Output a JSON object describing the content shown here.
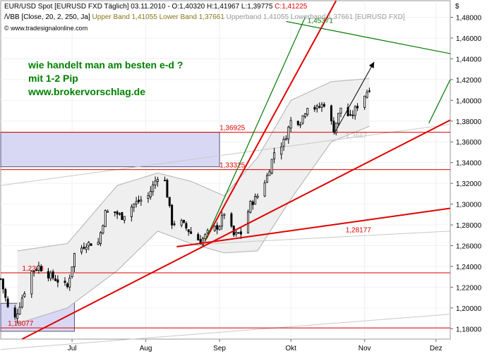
{
  "header": {
    "line1_prefix": "EUR/USD Spot [EURUSD FXD  Täglich] 03.11.2010 - O:1,40320 H:1,41967 L:1,39775 ",
    "line1_close": "C:1,41225",
    "line2_bb": "/\\/BB [Close, 20, 2, 250, Ja] ",
    "line2_upper": "Upper Band 1,41055 Lower Band 1,37661",
    "line2_gray": " Upperband 1,41055 Lowerband 1,37661  [EURUSD FXD]",
    "copyright": "© www.tradesignalonline.com",
    "currency_symbol": "$"
  },
  "annotation": {
    "line1": "wie handelt man am besten e-d ?",
    "line2": "mit 1-2 Pip",
    "line3": "www.brokervorschlag.de"
  },
  "colors": {
    "accent_red": "#e00000",
    "trend_green": "#007700",
    "candle_up": "#ffffff",
    "candle_down": "#000000",
    "zone_fill": "#d8d8f4",
    "zone_stroke": "#555577",
    "annotation_text": "#008000"
  },
  "chart_data": {
    "type": "candlestick",
    "x_start": "2010-06-01",
    "y_range": [
      1.17,
      1.496
    ],
    "x_range": [
      "2010-06-01",
      "2010-12-07"
    ],
    "y_tick_labels": [
      "1,18000",
      "1,20000",
      "1,22000",
      "1,24000",
      "1,26000",
      "1,28000",
      "1,30000",
      "1,32000",
      "1,34000",
      "1,36000",
      "1,38000",
      "1,40000",
      "1,42000",
      "1,44000",
      "1,46000",
      "1,48000"
    ],
    "y_ticks": [
      1.18,
      1.2,
      1.22,
      1.24,
      1.26,
      1.28,
      1.3,
      1.32,
      1.34,
      1.36,
      1.38,
      1.4,
      1.42,
      1.44,
      1.46,
      1.48
    ],
    "x_tick_labels": [
      {
        "label": "Jul",
        "date": "2010-07-01"
      },
      {
        "label": "Aug",
        "date": "2010-08-01"
      },
      {
        "label": "Sep",
        "date": "2010-09-01"
      },
      {
        "label": "Okt",
        "date": "2010-10-01"
      },
      {
        "label": "Nov",
        "date": "2010-11-01"
      },
      {
        "label": "Dez",
        "date": "2010-12-01"
      }
    ],
    "price_path": [
      [
        "2010-06-01",
        1.228
      ],
      [
        "2010-06-04",
        1.2
      ],
      [
        "2010-06-07",
        1.19
      ],
      [
        "2010-06-10",
        1.21
      ],
      [
        "2010-06-14",
        1.235
      ],
      [
        "2010-06-17",
        1.24
      ],
      [
        "2010-06-21",
        1.232
      ],
      [
        "2010-06-24",
        1.228
      ],
      [
        "2010-06-29",
        1.22
      ],
      [
        "2010-07-02",
        1.252
      ],
      [
        "2010-07-07",
        1.262
      ],
      [
        "2010-07-12",
        1.263
      ],
      [
        "2010-07-15",
        1.292
      ],
      [
        "2010-07-19",
        1.292
      ],
      [
        "2010-07-22",
        1.288
      ],
      [
        "2010-07-27",
        1.3
      ],
      [
        "2010-08-02",
        1.308
      ],
      [
        "2010-08-06",
        1.327
      ],
      [
        "2010-08-09",
        1.322
      ],
      [
        "2010-08-12",
        1.282
      ],
      [
        "2010-08-16",
        1.282
      ],
      [
        "2010-08-20",
        1.272
      ],
      [
        "2010-08-24",
        1.264
      ],
      [
        "2010-08-27",
        1.272
      ],
      [
        "2010-09-01",
        1.28
      ],
      [
        "2010-09-03",
        1.292
      ],
      [
        "2010-09-07",
        1.27
      ],
      [
        "2010-09-10",
        1.272
      ],
      [
        "2010-09-14",
        1.3
      ],
      [
        "2010-09-17",
        1.308
      ],
      [
        "2010-09-21",
        1.327
      ],
      [
        "2010-09-24",
        1.35
      ],
      [
        "2010-09-28",
        1.36
      ],
      [
        "2010-10-01",
        1.38
      ],
      [
        "2010-10-05",
        1.38
      ],
      [
        "2010-10-08",
        1.395
      ],
      [
        "2010-10-12",
        1.392
      ],
      [
        "2010-10-15",
        1.397
      ],
      [
        "2010-10-19",
        1.372
      ],
      [
        "2010-10-22",
        1.393
      ],
      [
        "2010-10-26",
        1.383
      ],
      [
        "2010-10-29",
        1.395
      ],
      [
        "2010-11-03",
        1.412
      ]
    ],
    "upper_band": [
      [
        "2010-06-08",
        1.255
      ],
      [
        "2010-06-29",
        1.262
      ],
      [
        "2010-07-20",
        1.318
      ],
      [
        "2010-08-06",
        1.33
      ],
      [
        "2010-08-20",
        1.322
      ],
      [
        "2010-09-03",
        1.308
      ],
      [
        "2010-09-17",
        1.345
      ],
      [
        "2010-10-01",
        1.4
      ],
      [
        "2010-10-18",
        1.418
      ],
      [
        "2010-11-03",
        1.421
      ]
    ],
    "lower_band": [
      [
        "2010-06-08",
        1.185
      ],
      [
        "2010-06-29",
        1.2
      ],
      [
        "2010-07-20",
        1.236
      ],
      [
        "2010-08-06",
        1.274
      ],
      [
        "2010-08-20",
        1.262
      ],
      [
        "2010-09-03",
        1.253
      ],
      [
        "2010-09-17",
        1.255
      ],
      [
        "2010-10-01",
        1.305
      ],
      [
        "2010-10-18",
        1.36
      ],
      [
        "2010-11-03",
        1.375
      ]
    ],
    "horizontal_lines": [
      {
        "value": 1.36925,
        "label": "1,36925",
        "label_date": "2010-09-01"
      },
      {
        "value": 1.33325,
        "label": "1,33325",
        "label_date": "2010-09-01"
      },
      {
        "value": 1.2338,
        "label": "1,2338",
        "label_date": "2010-06-10"
      },
      {
        "value": 1.1808,
        "label": "1,18077",
        "label_date": "2010-06-04"
      }
    ],
    "trend_lines": [
      {
        "color": "red",
        "from": [
          "2010-06-10",
          1.17
        ],
        "to": [
          "2010-12-07",
          1.381
        ]
      },
      {
        "color": "red",
        "from": [
          "2010-08-26",
          1.265
        ],
        "to": [
          "2010-10-20",
          1.496
        ]
      },
      {
        "color": "red",
        "from": [
          "2010-08-14",
          1.259
        ],
        "to": [
          "2010-12-07",
          1.296
        ],
        "label": "1,28177",
        "label_date": "2010-10-24"
      },
      {
        "color": "green",
        "from": [
          "2010-08-26",
          1.265
        ],
        "to": [
          "2010-10-07",
          1.48
        ]
      },
      {
        "color": "green",
        "from": [
          "2010-09-29",
          1.476
        ],
        "to": [
          "2010-12-07",
          1.445
        ],
        "label": "1,45371",
        "label_date": "2010-10-08"
      },
      {
        "color": "green",
        "from": [
          "2010-11-28",
          1.378
        ],
        "to": [
          "2010-12-07",
          1.42
        ]
      }
    ],
    "gray_lines": [
      {
        "from": [
          "2010-06-01",
          1.318
        ],
        "to": [
          "2010-12-07",
          1.377
        ]
      },
      {
        "from": [
          "2010-06-01",
          1.16
        ],
        "to": [
          "2010-12-07",
          1.194
        ]
      },
      {
        "from": [
          "2010-08-28",
          1.262
        ],
        "to": [
          "2010-12-07",
          1.274
        ]
      }
    ],
    "gray_labels": [
      {
        "text": "1,3667",
        "date": "2010-10-24",
        "value": 1.364
      }
    ],
    "zones": [
      {
        "from_date": "2010-06-01",
        "to_date": "2010-09-01",
        "top": 1.3693,
        "bottom": 1.336
      },
      {
        "from_date": "2010-06-01",
        "to_date": "2010-07-02",
        "top": 1.2045,
        "bottom": 1.1775
      }
    ],
    "arrows": [
      {
        "from": [
          "2010-10-19",
          1.367
        ],
        "to": [
          "2010-11-05",
          1.437
        ]
      }
    ]
  }
}
